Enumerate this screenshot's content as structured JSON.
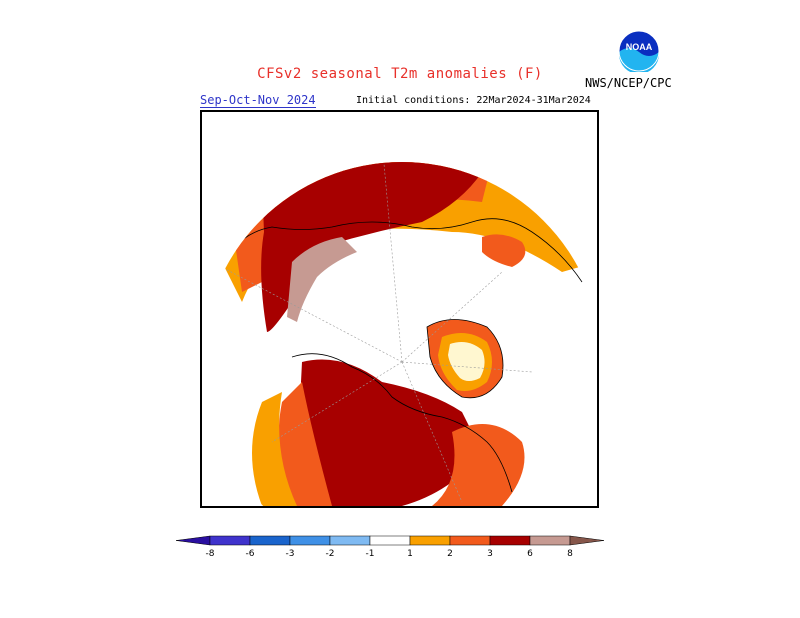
{
  "title": "CFSv2 seasonal T2m anomalies (F)",
  "agency": "NWS/NCEP/CPC",
  "logo_text": "NOAA",
  "season_label": "Sep-Oct-Nov 2024",
  "initial_conditions": "Initial conditions: 22Mar2024-31Mar2024",
  "colors": {
    "title": "#e8302a",
    "season": "#2f36c9",
    "orange": "#f9a000",
    "red_orange": "#f25a1c",
    "dark_red": "#a70000",
    "pinkish_brown": "#c69a92"
  },
  "colorbar": {
    "tick_labels": [
      "-8",
      "-6",
      "-3",
      "-2",
      "-1",
      "1",
      "2",
      "3",
      "6",
      "8"
    ],
    "bins": [
      {
        "label": "< -8",
        "color": "#2a0fa0"
      },
      {
        "label": "-8 to -6",
        "color": "#3f33cc"
      },
      {
        "label": "-6 to -3",
        "color": "#1a64cc"
      },
      {
        "label": "-3 to -2",
        "color": "#3f90e6"
      },
      {
        "label": "-2 to -1",
        "color": "#7fbaf2"
      },
      {
        "label": "-1 to 1",
        "color": "#ffffff"
      },
      {
        "label": "1 to 2",
        "color": "#f9a000"
      },
      {
        "label": "2 to 3",
        "color": "#f25a1c"
      },
      {
        "label": "3 to 6",
        "color": "#a70000"
      },
      {
        "label": "6 to 8",
        "color": "#c69a92"
      },
      {
        "label": "> 8",
        "color": "#86564a"
      }
    ]
  }
}
